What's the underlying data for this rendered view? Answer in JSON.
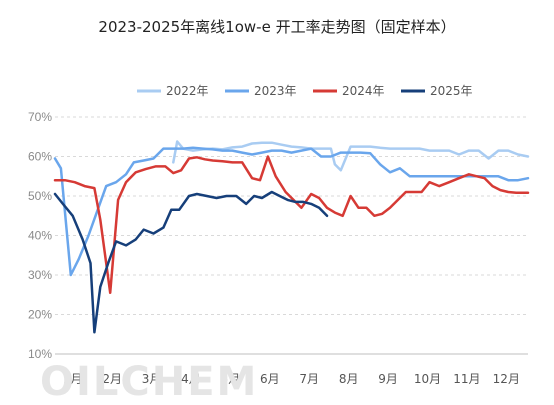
{
  "chart_data": {
    "type": "line",
    "title": "2023-2025年离线1ow-e 开工率走势图（固定样本）",
    "watermark": "OILCHEM",
    "y_ticks": [
      "70%",
      "60%",
      "50%",
      "40%",
      "30%",
      "20%",
      "10%"
    ],
    "ylim": [
      10,
      70
    ],
    "xlim": [
      0,
      12
    ],
    "x_ticks": [
      "1月",
      "2月",
      "3月",
      "4月",
      "5月",
      "6月",
      "7月",
      "8月",
      "9月",
      "10月",
      "11月",
      "12月"
    ],
    "grid": "horizontal-dashed",
    "legend_position": "top",
    "series": [
      {
        "name": "2022年",
        "color": "#a9ccf2",
        "x": [
          0.0,
          0.25,
          0.5,
          0.75,
          1.0,
          1.25,
          1.5,
          1.75,
          2.0,
          2.25,
          2.5,
          2.75,
          3.0,
          3.1,
          3.25,
          3.5,
          3.75,
          4.0,
          4.25,
          4.5,
          4.75,
          5.0,
          5.25,
          5.5,
          5.75,
          6.0,
          6.25,
          6.5,
          6.75,
          7.0,
          7.1,
          7.25,
          7.5,
          7.75,
          8.0,
          8.25,
          8.5,
          8.75,
          9.0,
          9.25,
          9.5,
          9.75,
          10.0,
          10.25,
          10.5,
          10.75,
          11.0,
          11.25,
          11.5,
          11.75,
          12.0
        ],
        "values": [
          null,
          null,
          null,
          null,
          null,
          null,
          null,
          null,
          null,
          null,
          null,
          null,
          58.5,
          63.8,
          62.0,
          61.5,
          61.8,
          62.0,
          61.8,
          62.3,
          62.5,
          63.3,
          63.5,
          63.5,
          63.0,
          62.5,
          62.3,
          62.0,
          62.0,
          62.0,
          58.0,
          56.5,
          62.5,
          62.5,
          62.5,
          62.2,
          62.0,
          62.0,
          62.0,
          62.0,
          61.5,
          61.5,
          61.5,
          60.5,
          61.5,
          61.5,
          59.5,
          61.5,
          61.5,
          60.5,
          60.0
        ]
      },
      {
        "name": "2023年",
        "color": "#6aa6ec",
        "x": [
          0.0,
          0.15,
          0.4,
          0.6,
          0.85,
          1.1,
          1.3,
          1.55,
          1.8,
          2.0,
          2.25,
          2.5,
          2.75,
          3.0,
          3.25,
          3.5,
          3.75,
          4.0,
          4.25,
          4.5,
          4.75,
          5.0,
          5.25,
          5.5,
          5.75,
          6.0,
          6.25,
          6.5,
          6.75,
          7.0,
          7.25,
          7.5,
          7.75,
          8.0,
          8.25,
          8.5,
          8.75,
          9.0,
          9.25,
          9.5,
          9.75,
          10.0,
          10.25,
          10.5,
          10.75,
          11.0,
          11.25,
          11.5,
          11.75,
          12.0
        ],
        "values": [
          59.5,
          57.0,
          30.0,
          34.0,
          40.0,
          47.0,
          52.5,
          53.5,
          55.5,
          58.5,
          59.0,
          59.5,
          62.0,
          62.0,
          62.0,
          62.2,
          62.0,
          61.8,
          61.5,
          61.5,
          61.0,
          60.5,
          61.0,
          61.5,
          61.5,
          61.0,
          61.5,
          62.0,
          60.0,
          60.0,
          61.0,
          61.0,
          61.0,
          60.8,
          58.0,
          56.0,
          57.0,
          55.0,
          55.0,
          55.0,
          55.0,
          55.0,
          55.0,
          55.0,
          55.0,
          55.0,
          55.0,
          54.0,
          54.0,
          54.5
        ]
      },
      {
        "name": "2024年",
        "color": "#d63a35",
        "x": [
          0.0,
          0.25,
          0.5,
          0.75,
          1.0,
          1.15,
          1.4,
          1.6,
          1.8,
          2.05,
          2.3,
          2.55,
          2.8,
          3.0,
          3.2,
          3.4,
          3.6,
          3.8,
          4.0,
          4.25,
          4.5,
          4.75,
          5.0,
          5.2,
          5.4,
          5.6,
          5.85,
          6.05,
          6.25,
          6.5,
          6.7,
          6.9,
          7.1,
          7.3,
          7.5,
          7.7,
          7.9,
          8.1,
          8.3,
          8.5,
          8.7,
          8.9,
          9.1,
          9.3,
          9.5,
          9.75,
          10.0,
          10.25,
          10.5,
          10.7,
          10.9,
          11.1,
          11.3,
          11.5,
          11.7,
          11.9,
          12.0
        ],
        "values": [
          54.0,
          54.0,
          53.5,
          52.5,
          52.0,
          44.0,
          25.5,
          49.0,
          53.5,
          56.0,
          56.8,
          57.5,
          57.5,
          55.8,
          56.5,
          59.5,
          59.8,
          59.3,
          59.0,
          58.8,
          58.5,
          58.5,
          54.5,
          54.0,
          60.0,
          55.0,
          51.0,
          49.0,
          47.0,
          50.5,
          49.5,
          47.0,
          45.8,
          45.0,
          50.0,
          47.0,
          47.0,
          45.0,
          45.5,
          47.0,
          49.0,
          51.0,
          51.0,
          51.0,
          53.5,
          52.5,
          53.5,
          54.5,
          55.5,
          55.0,
          54.5,
          52.5,
          51.5,
          51.0,
          50.8,
          50.8,
          50.8
        ]
      },
      {
        "name": "2025年",
        "color": "#163f7a",
        "x": [
          0.0,
          0.2,
          0.45,
          0.7,
          0.9,
          1.0,
          1.15,
          1.35,
          1.55,
          1.8,
          2.05,
          2.25,
          2.5,
          2.75,
          2.95,
          3.15,
          3.4,
          3.6,
          3.85,
          4.1,
          4.35,
          4.6,
          4.85,
          5.05,
          5.25,
          5.5,
          5.7,
          5.9,
          6.1,
          6.3,
          6.5,
          6.7,
          6.9,
          7.1,
          7.3,
          7.5,
          7.7
        ],
        "values": [
          50.5,
          48.0,
          45.0,
          39.0,
          33.0,
          15.5,
          27.0,
          33.0,
          38.5,
          37.5,
          39.0,
          41.5,
          40.5,
          42.0,
          46.5,
          46.5,
          50.0,
          50.5,
          50.0,
          49.5,
          50.0,
          50.0,
          48.0,
          50.0,
          49.5,
          51.0,
          50.0,
          49.0,
          48.5,
          48.5,
          48.0,
          47.0,
          45.0,
          null,
          null,
          null,
          null
        ]
      }
    ]
  }
}
